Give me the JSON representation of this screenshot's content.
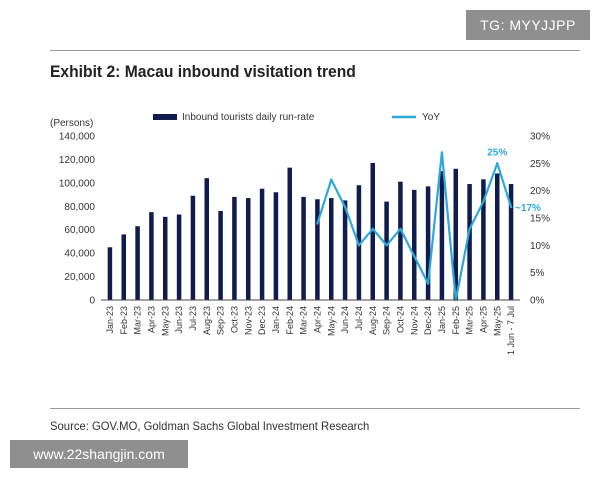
{
  "badge": {
    "text": "TG: MYYJJPP"
  },
  "header": {
    "title": "Exhibit 2: Macau inbound visitation trend"
  },
  "footer": {
    "source": "Source: GOV.MO, Goldman Sachs Global Investment Research"
  },
  "watermark": {
    "text": "www.22shangjin.com"
  },
  "colors": {
    "bar": "#0f1c4d",
    "line": "#2ea8d8",
    "axis": "#444444",
    "text": "#333333"
  },
  "chart_data": {
    "type": "bar",
    "categories": [
      "Jan-23",
      "Feb-23",
      "Mar-23",
      "Apr-23",
      "May-23",
      "Jun-23",
      "Jul-23",
      "Aug-23",
      "Sep-23",
      "Oct-23",
      "Nov-23",
      "Dec-23",
      "Jan-24",
      "Feb-24",
      "Mar-24",
      "Apr-24",
      "May-24",
      "Jun-24",
      "Jul-24",
      "Aug-24",
      "Sep-24",
      "Oct-24",
      "Nov-24",
      "Dec-24",
      "Jan-25",
      "Feb-25",
      "Mar-25",
      "Apr-25",
      "May-25",
      "1 Jun - 7 Jul"
    ],
    "series": [
      {
        "name": "Inbound tourists daily run-rate",
        "type": "bar",
        "axis": "left",
        "values": [
          45000,
          56000,
          63000,
          75000,
          71000,
          73000,
          89000,
          104000,
          76000,
          88000,
          87000,
          95000,
          92000,
          113000,
          88000,
          86000,
          87000,
          85000,
          98000,
          117000,
          84000,
          101000,
          94000,
          97000,
          110000,
          112000,
          99000,
          103000,
          108000,
          99000
        ]
      },
      {
        "name": "YoY",
        "type": "line",
        "axis": "right",
        "values": [
          null,
          null,
          null,
          null,
          null,
          null,
          null,
          null,
          null,
          null,
          null,
          null,
          null,
          null,
          null,
          14,
          22,
          17,
          10,
          13,
          10,
          13,
          8,
          3,
          27,
          0,
          13,
          18,
          25,
          17
        ]
      }
    ],
    "left_axis": {
      "unit_label": "(Persons)",
      "range": [
        0,
        140000
      ],
      "ticks": [
        "0",
        "20,000",
        "40,000",
        "60,000",
        "80,000",
        "100,000",
        "120,000",
        "140,000"
      ]
    },
    "right_axis": {
      "range": [
        0,
        30
      ],
      "ticks": [
        "0%",
        "5%",
        "10%",
        "15%",
        "20%",
        "25%",
        "30%"
      ]
    },
    "annotations": [
      {
        "text": "25%",
        "category": "May-25",
        "value": 25,
        "axis": "right"
      },
      {
        "text": "~17%",
        "category": "1 Jun - 7 Jul",
        "value": 17,
        "axis": "right"
      }
    ],
    "legend_position": "top",
    "grid": false
  }
}
